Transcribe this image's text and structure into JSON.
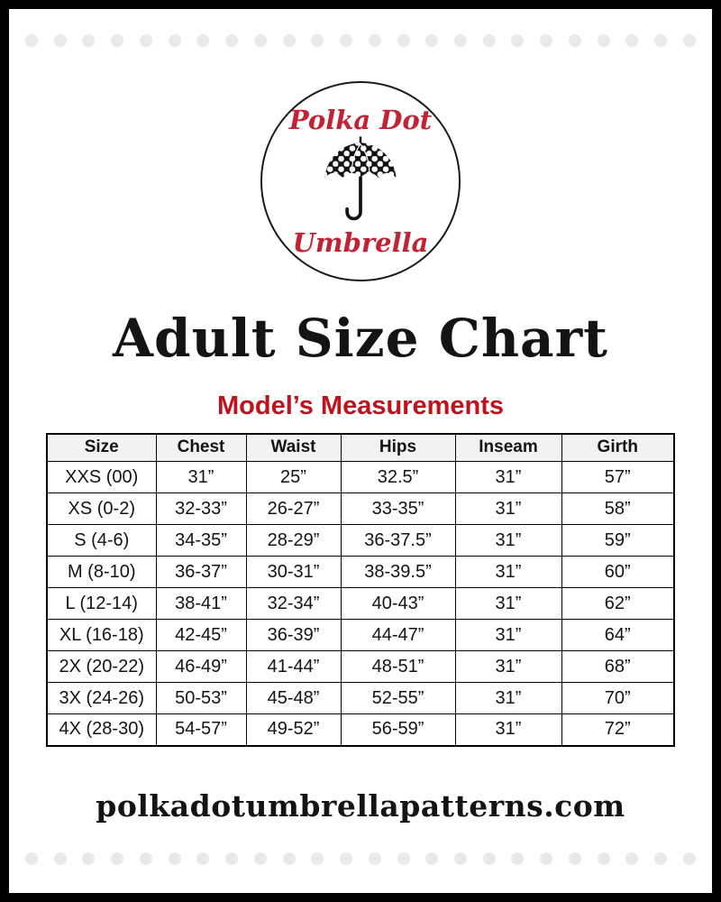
{
  "page": {
    "title": "Adult Size Chart",
    "subtitle": "Model’s Measurements",
    "footer": "polkadotumbrellapatterns.com"
  },
  "logo": {
    "line1": "Polka Dot",
    "line2": "Umbrella",
    "icon": "umbrella-icon"
  },
  "colors": {
    "accent_red": "#c1111d",
    "logo_red": "#c32134",
    "header_bg": "#f2f2f2",
    "dot_gray": "#e9e9e9",
    "frame_black": "#000000"
  },
  "table": {
    "headers": [
      "Size",
      "Chest",
      "Waist",
      "Hips",
      "Inseam",
      "Girth"
    ],
    "rows": [
      [
        "XXS (00)",
        "31”",
        "25”",
        "32.5”",
        "31”",
        "57”"
      ],
      [
        "XS (0-2)",
        "32-33”",
        "26-27”",
        "33-35”",
        "31”",
        "58”"
      ],
      [
        "S (4-6)",
        "34-35”",
        "28-29”",
        "36-37.5”",
        "31”",
        "59”"
      ],
      [
        "M (8-10)",
        "36-37”",
        "30-31”",
        "38-39.5”",
        "31”",
        "60”"
      ],
      [
        "L (12-14)",
        "38-41”",
        "32-34”",
        "40-43”",
        "31”",
        "62”"
      ],
      [
        "XL (16-18)",
        "42-45”",
        "36-39”",
        "44-47”",
        "31”",
        "64”"
      ],
      [
        "2X (20-22)",
        "46-49”",
        "41-44”",
        "48-51”",
        "31”",
        "68”"
      ],
      [
        "3X (24-26)",
        "50-53”",
        "45-48”",
        "52-55”",
        "31”",
        "70”"
      ],
      [
        "4X (28-30)",
        "54-57”",
        "49-52”",
        "56-59”",
        "31”",
        "72”"
      ]
    ]
  }
}
